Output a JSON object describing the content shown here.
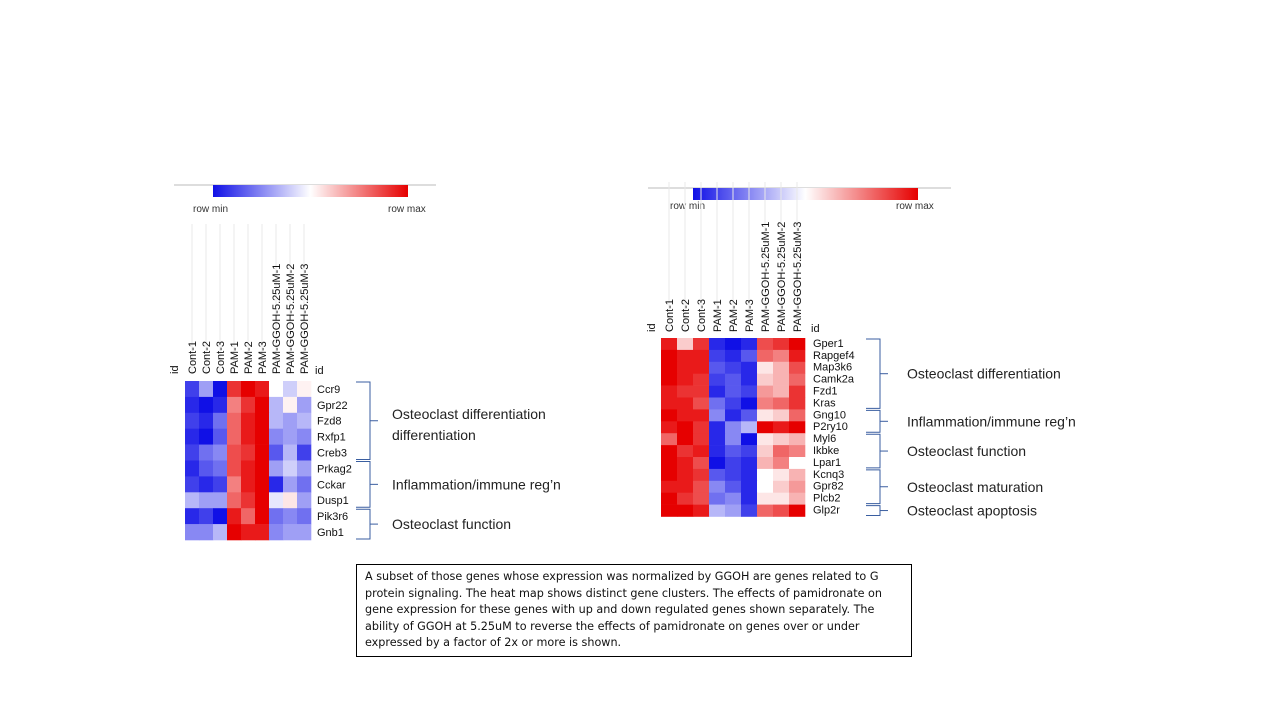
{
  "scale": {
    "min_label": "row min",
    "max_label": "row max",
    "colors": {
      "low": "#1010e6",
      "mid": "#ffffff",
      "high": "#e60000"
    }
  },
  "caption": "A subset of those genes whose expression was normalized by GGOH are genes related to G protein signaling. The heat map   shows distinct gene clusters. The effects of pamidronate on gene expression for these genes with up and down regulated genes shown separately. The ability of GGOH at 5.25uM  to reverse the effects of pamidronate on genes over or under expressed by a factor of 2x or more is shown.",
  "chart_data": [
    {
      "type": "heatmap",
      "id_label": "id",
      "columns": [
        "Cont-1",
        "Cont-2",
        "Cont-3",
        "PAM-1",
        "PAM-2",
        "PAM-3",
        "PAM-GGOH-5.25uM-1",
        "PAM-GGOH-5.25uM-2",
        "PAM-GGOH-5.25uM-3"
      ],
      "rows": [
        "Ccr9",
        "Gpr22",
        "Fzd8",
        "Rxfp1",
        "Creb3",
        "Prkag2",
        "Cckar",
        "Dusp1",
        "Pik3r6",
        "Gnb1"
      ],
      "values": [
        [
          -0.8,
          -0.4,
          -1.0,
          0.8,
          1.0,
          0.9,
          0.0,
          -0.2,
          0.05
        ],
        [
          -0.9,
          -1.0,
          -0.9,
          0.5,
          0.8,
          1.0,
          -0.3,
          0.05,
          -0.4
        ],
        [
          -0.8,
          -0.9,
          -0.6,
          0.6,
          0.9,
          1.0,
          -0.3,
          -0.4,
          -0.3
        ],
        [
          -0.9,
          -1.0,
          -0.7,
          0.6,
          0.9,
          1.0,
          -0.5,
          -0.4,
          -0.5
        ],
        [
          -0.8,
          -0.6,
          -0.5,
          0.7,
          0.8,
          1.0,
          -0.7,
          -0.3,
          -0.8
        ],
        [
          -0.9,
          -0.7,
          -0.6,
          0.7,
          0.9,
          1.0,
          -0.4,
          -0.2,
          -0.4
        ],
        [
          -0.8,
          -0.9,
          -0.8,
          0.5,
          0.9,
          1.0,
          -0.9,
          -0.4,
          -0.6
        ],
        [
          -0.3,
          -0.4,
          -0.4,
          0.6,
          0.8,
          1.0,
          -0.1,
          0.1,
          -0.4
        ],
        [
          -0.9,
          -0.8,
          -1.0,
          0.9,
          0.6,
          1.0,
          -0.6,
          -0.5,
          -0.6
        ],
        [
          -0.5,
          -0.5,
          -0.3,
          1.0,
          0.9,
          0.9,
          -0.5,
          -0.4,
          -0.4
        ]
      ],
      "clusters": [
        {
          "label": "Osteoclast differentiation",
          "label2": "differentiation",
          "start": 0,
          "end": 4
        },
        {
          "label": "Inflammation/immune  reg’n",
          "start": 5,
          "end": 7
        },
        {
          "label": "Osteoclast function",
          "start": 8,
          "end": 9
        }
      ]
    },
    {
      "type": "heatmap",
      "id_label": "id",
      "columns": [
        "Cont-1",
        "Cont-2",
        "Cont-3",
        "PAM-1",
        "PAM-2",
        "PAM-3",
        "PAM-GGOH-5.25uM-1",
        "PAM-GGOH-5.25uM-2",
        "PAM-GGOH-5.25uM-3"
      ],
      "rows": [
        "Gper1",
        "Rapgef4",
        "Map3k6",
        "Camk2a",
        "Fzd1",
        "Kras",
        "Gng10",
        "P2ry10",
        "Myl6",
        "Ikbke",
        "Lpar1",
        "Kcnq3",
        "Gpr82",
        "Plcb2",
        "Glp2r"
      ],
      "values": [
        [
          0.9,
          0.2,
          0.8,
          -0.9,
          -1.0,
          -0.9,
          0.7,
          0.8,
          1.0
        ],
        [
          1.0,
          0.9,
          0.9,
          -0.8,
          -0.9,
          -0.7,
          0.6,
          0.5,
          0.9
        ],
        [
          1.0,
          0.9,
          0.9,
          -0.7,
          -0.8,
          -0.9,
          0.1,
          0.3,
          0.7
        ],
        [
          1.0,
          0.9,
          0.8,
          -0.8,
          -0.7,
          -0.9,
          0.2,
          0.3,
          0.6
        ],
        [
          0.9,
          0.8,
          0.8,
          -0.9,
          -0.7,
          -0.8,
          0.4,
          0.3,
          0.8
        ],
        [
          0.9,
          0.9,
          0.7,
          -0.6,
          -0.8,
          -1.0,
          0.5,
          0.6,
          0.8
        ],
        [
          1.0,
          0.9,
          0.9,
          -0.5,
          -0.9,
          -0.7,
          0.1,
          0.2,
          0.6
        ],
        [
          0.9,
          1.0,
          0.8,
          -0.9,
          -0.5,
          -0.3,
          1.0,
          0.9,
          1.0
        ],
        [
          0.6,
          1.0,
          0.8,
          -0.9,
          -0.5,
          -1.0,
          0.1,
          0.2,
          0.3
        ],
        [
          1.0,
          0.8,
          0.9,
          -0.9,
          -0.7,
          -0.8,
          0.2,
          0.6,
          0.5
        ],
        [
          1.0,
          0.9,
          0.7,
          -1.0,
          -0.8,
          -0.9,
          0.3,
          0.5,
          0.0
        ],
        [
          1.0,
          0.9,
          0.8,
          -0.7,
          -0.8,
          -0.9,
          0.0,
          0.1,
          0.3
        ],
        [
          0.9,
          0.9,
          0.7,
          -0.5,
          -0.7,
          -0.9,
          0.0,
          0.2,
          0.4
        ],
        [
          1.0,
          0.8,
          0.7,
          -0.6,
          -0.5,
          -0.9,
          0.1,
          0.1,
          0.3
        ],
        [
          1.0,
          1.0,
          0.9,
          -0.3,
          -0.4,
          -0.8,
          0.6,
          0.7,
          1.0
        ]
      ],
      "clusters": [
        {
          "label": "Osteoclast differentiation",
          "start": 0,
          "end": 5
        },
        {
          "label": "Inflammation/immune  reg’n",
          "start": 6,
          "end": 7
        },
        {
          "label": "Osteoclast function",
          "start": 8,
          "end": 10
        },
        {
          "label": "Osteoclast maturation",
          "start": 11,
          "end": 13
        },
        {
          "label": "Osteoclast apoptosis",
          "start": 14,
          "end": 14
        }
      ]
    }
  ]
}
